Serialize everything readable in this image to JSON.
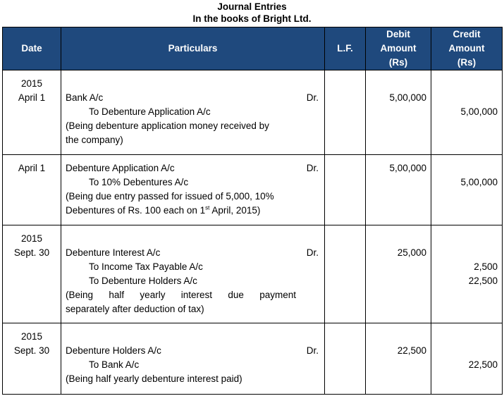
{
  "title": "Journal Entries",
  "subtitle": "In the books of Bright Ltd.",
  "colors": {
    "header_bg": "#1F497D",
    "header_text": "#FFFFFF"
  },
  "headers": {
    "date": "Date",
    "particulars": "Particulars",
    "lf": "L.F.",
    "debit": [
      "Debit",
      "Amount",
      "(Rs)"
    ],
    "credit": [
      "Credit",
      "Amount",
      "(Rs)"
    ]
  },
  "dr_label": "Dr.",
  "entries": [
    {
      "date": [
        "2015",
        "April 1"
      ],
      "lines": [
        {
          "text": "",
          "debit": "",
          "credit": ""
        },
        {
          "text": "Bank A/c",
          "dr": true,
          "debit": "5,00,000",
          "credit": ""
        },
        {
          "text": "To Debenture Application A/c",
          "to": true,
          "debit": "",
          "credit": "5,00,000"
        },
        {
          "text": "(Being debenture application money received by",
          "debit": "",
          "credit": ""
        },
        {
          "text": "the company)",
          "debit": "",
          "credit": ""
        }
      ]
    },
    {
      "date": [
        "April 1"
      ],
      "lines": [
        {
          "text": "Debenture Application A/c",
          "dr": true,
          "debit": "5,00,000",
          "credit": ""
        },
        {
          "text": "To 10% Debentures A/c",
          "to": true,
          "debit": "",
          "credit": "5,00,000"
        },
        {
          "text": "(Being due entry passed for issued of 5,000, 10%",
          "debit": "",
          "credit": ""
        },
        {
          "text": "Debentures of Rs. 100 each on 1",
          "sup": "st",
          "after": " April, 2015)",
          "debit": "",
          "credit": ""
        }
      ]
    },
    {
      "date": [
        "2015",
        "Sept. 30"
      ],
      "lines": [
        {
          "text": "",
          "debit": "",
          "credit": ""
        },
        {
          "text": "Debenture Interest A/c",
          "dr": true,
          "debit": "25,000",
          "credit": ""
        },
        {
          "text": "To Income Tax Payable A/c",
          "to": true,
          "debit": "",
          "credit": "2,500"
        },
        {
          "text": "To Debenture Holders A/c",
          "to": true,
          "debit": "",
          "credit": "22,500"
        },
        {
          "text": "(Being half yearly interest due payment",
          "just": true,
          "debit": "",
          "credit": ""
        },
        {
          "text": "separately after deduction of tax)",
          "debit": "",
          "credit": ""
        }
      ]
    },
    {
      "date": [
        "2015",
        "Sept. 30"
      ],
      "lines": [
        {
          "text": "",
          "debit": "",
          "credit": ""
        },
        {
          "text": "Debenture Holders A/c",
          "dr": true,
          "debit": "22,500",
          "credit": ""
        },
        {
          "text": "To Bank A/c",
          "to": true,
          "debit": "",
          "credit": "22,500"
        },
        {
          "text": "(Being half yearly debenture interest paid)",
          "debit": "",
          "credit": ""
        }
      ]
    }
  ]
}
